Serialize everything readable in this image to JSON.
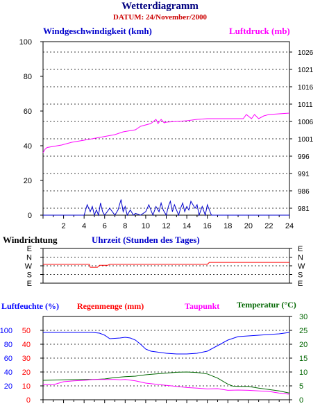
{
  "header": {
    "title": "Wetterdiagramm",
    "date": "DATUM: 24/November/2000"
  },
  "colors": {
    "wind": "#0000cc",
    "pressure": "#ff00ff",
    "direction": "#ff0000",
    "humidity": "#0000ff",
    "rain": "#ff0000",
    "dewpoint": "#ff00ff",
    "temperature": "#006600",
    "grid": "#000000"
  },
  "labels": {
    "wind": "Windgeschwindigkeit (kmh)",
    "pressure": "Luftdruck (mb)",
    "direction": "Windrichtung",
    "time": "Uhrzeit (Stunden des Tages)",
    "humidity": "Luftfeuchte (%)",
    "rain": "Regenmenge (mm)",
    "dewpoint": "Taupunkt",
    "temperature": "Temperatur (°C)"
  },
  "chart_data": [
    {
      "id": "wind-pressure",
      "type": "line",
      "xlim": [
        0,
        24
      ],
      "xticks": [
        2,
        4,
        6,
        8,
        10,
        12,
        14,
        16,
        18,
        20,
        22,
        24
      ],
      "left_axis": {
        "label": "Windgeschwindigkeit (kmh)",
        "ylim": [
          0,
          100
        ],
        "ticks": [
          0,
          20,
          40,
          60,
          80,
          100
        ]
      },
      "right_axis": {
        "label": "Luftdruck (mb)",
        "ylim": [
          979,
          1029
        ],
        "ticks": [
          981,
          986,
          991,
          996,
          1001,
          1006,
          1011,
          1016,
          1021,
          1026
        ]
      },
      "grid": true,
      "series": [
        {
          "name": "Windgeschwindigkeit (kmh)",
          "axis": "left",
          "x": [
            0,
            4.0,
            4.3,
            4.6,
            4.8,
            5.0,
            5.2,
            5.4,
            5.6,
            5.8,
            6.0,
            6.5,
            7.0,
            7.3,
            7.6,
            7.8,
            8.0,
            8.2,
            8.5,
            8.8,
            9.0,
            9.5,
            10.0,
            10.3,
            10.5,
            10.7,
            11.0,
            11.3,
            11.5,
            11.7,
            12.0,
            12.2,
            12.4,
            12.6,
            12.8,
            13.0,
            13.2,
            13.4,
            13.6,
            13.8,
            14.0,
            14.2,
            14.4,
            14.6,
            14.8,
            15.0,
            15.2,
            15.5,
            15.8,
            16.0,
            16.2,
            16.4,
            17,
            24
          ],
          "y": [
            0,
            0,
            6,
            2,
            5,
            0,
            3,
            0,
            7,
            2,
            0,
            4,
            0,
            3,
            9,
            2,
            5,
            0,
            3,
            0,
            1,
            0,
            2,
            6,
            3,
            0,
            5,
            2,
            7,
            3,
            0,
            5,
            8,
            2,
            6,
            3,
            0,
            4,
            7,
            2,
            5,
            3,
            8,
            6,
            4,
            6,
            0,
            5,
            0,
            6,
            3,
            0,
            0,
            0
          ]
        },
        {
          "name": "Luftdruck (mb)",
          "axis": "right",
          "x": [
            0,
            0.2,
            0.4,
            1.8,
            2.8,
            4.0,
            5.5,
            7.0,
            7.8,
            9.0,
            9.5,
            10.5,
            11.0,
            11.2,
            11.5,
            11.8,
            12.0,
            14.0,
            15.0,
            16.0,
            18.0,
            19.5,
            19.8,
            20.3,
            20.6,
            21.0,
            21.5,
            22.0,
            23.0,
            24.0
          ],
          "y": [
            997,
            998,
            998.5,
            999.2,
            1000,
            1000.6,
            1001.4,
            1002.2,
            1003.0,
            1003.6,
            1004.6,
            1005.4,
            1006.6,
            1005.4,
            1006.6,
            1005.6,
            1005.8,
            1006.2,
            1006.6,
            1006.8,
            1006.8,
            1006.8,
            1008,
            1006.8,
            1008,
            1006.8,
            1007.6,
            1008.0,
            1008.2,
            1008.4
          ]
        }
      ]
    },
    {
      "id": "wind-direction",
      "type": "line",
      "xlim": [
        0,
        24
      ],
      "y_categories": [
        "E",
        "N",
        "W",
        "S",
        "E"
      ],
      "grid": true,
      "series": [
        {
          "name": "Windrichtung",
          "x": [
            0,
            4.5,
            4.6,
            5.3,
            5.5,
            6.3,
            6.5,
            16,
            16.2,
            24
          ],
          "y_deg": [
            255,
            255,
            285,
            285,
            265,
            265,
            255,
            255,
            235,
            235
          ]
        }
      ]
    },
    {
      "id": "humidity-rain-dewpoint-temp",
      "type": "line",
      "xlim": [
        0,
        24
      ],
      "axes": {
        "humidity": {
          "label": "Luftfeuchte (%)",
          "ylim": [
            0,
            120
          ],
          "ticks": [
            20,
            40,
            60,
            80,
            100
          ]
        },
        "rain": {
          "label": "Regenmenge (mm)",
          "ylim": [
            0,
            60
          ],
          "ticks": [
            0,
            10,
            20,
            30,
            40,
            50
          ]
        },
        "temperature": {
          "label": "Temperatur (°C)",
          "ylim": [
            0,
            30
          ],
          "ticks": [
            0,
            5,
            10,
            15,
            20,
            25,
            30
          ]
        }
      },
      "grid": true,
      "series": [
        {
          "name": "Luftfeuchte (%)",
          "axis": "humidity",
          "x": [
            0,
            2,
            4,
            4.8,
            5.5,
            6,
            6.5,
            7.5,
            8,
            8.5,
            9.0,
            9.5,
            10.0,
            10.5,
            11,
            12,
            13,
            14,
            15,
            16,
            17,
            18,
            19,
            20,
            21,
            22,
            23,
            24
          ],
          "y": [
            97,
            97,
            97,
            97,
            96,
            93,
            88,
            89,
            90,
            89,
            86,
            80,
            73,
            70,
            69,
            67,
            66,
            66,
            67,
            70,
            78,
            86,
            91,
            92,
            93,
            94,
            95,
            97
          ]
        },
        {
          "name": "Taupunkt",
          "axis": "temperature",
          "x": [
            0,
            1,
            2,
            3,
            4,
            5,
            6,
            7,
            7.5,
            8,
            9,
            10,
            11,
            12,
            13,
            14,
            15,
            16,
            17,
            18,
            19,
            20,
            21,
            22,
            23,
            23.5,
            24
          ],
          "y": [
            5.5,
            5.4,
            6.5,
            6.8,
            7.0,
            7.3,
            7.3,
            7.3,
            7.2,
            7.3,
            6.8,
            6.0,
            5.6,
            5.2,
            4.8,
            4.4,
            4.2,
            3.9,
            4.0,
            3.4,
            3.5,
            3.4,
            3.2,
            3.0,
            2.4,
            2.2,
            2.0
          ]
        },
        {
          "name": "Temperatur (°C)",
          "axis": "temperature",
          "x": [
            0,
            2,
            4,
            5,
            6,
            7,
            8,
            9,
            10,
            11,
            12,
            13,
            14,
            15,
            16,
            17,
            18,
            18.5,
            19,
            20,
            21,
            22,
            23,
            24
          ],
          "y": [
            7.0,
            7.2,
            7.3,
            7.3,
            7.5,
            8.0,
            8.3,
            8.5,
            9.0,
            9.3,
            9.6,
            9.9,
            10.0,
            9.8,
            9.3,
            7.8,
            5.6,
            4.9,
            4.8,
            4.8,
            4.2,
            3.7,
            3.2,
            2.4
          ]
        }
      ]
    }
  ]
}
